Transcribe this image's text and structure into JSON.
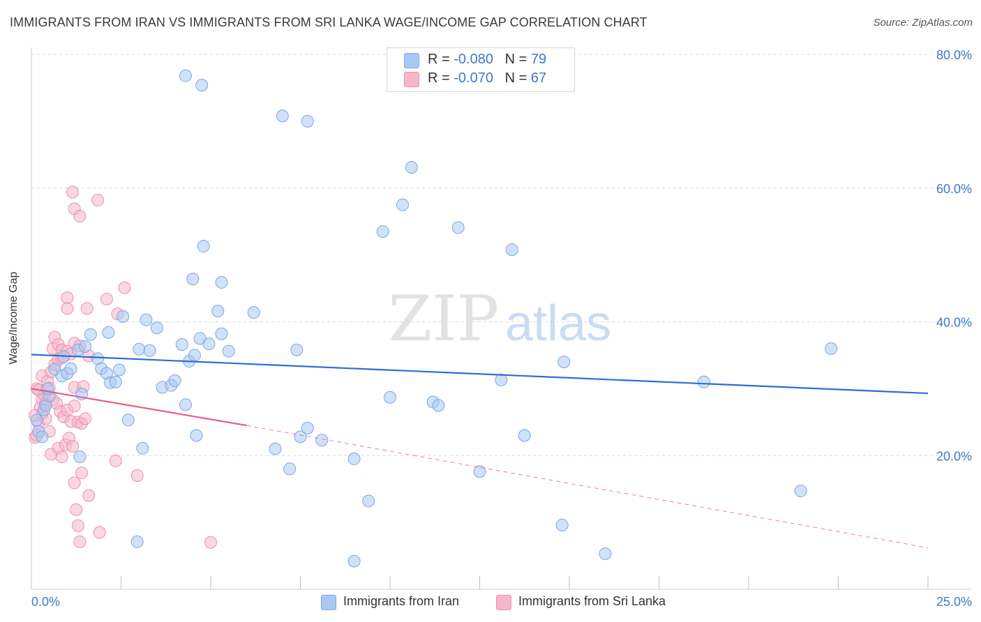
{
  "title": "IMMIGRANTS FROM IRAN VS IMMIGRANTS FROM SRI LANKA WAGE/INCOME GAP CORRELATION CHART",
  "source": "Source: ZipAtlas.com",
  "watermark": {
    "zip": "ZIP",
    "atlas": "atlas"
  },
  "colors": {
    "iran_fill": "#aac8f2",
    "iran_stroke": "#7aa7e6",
    "iran_line": "#2a6fcf",
    "srilanka_fill": "#f6b7cb",
    "srilanka_stroke": "#ec8fad",
    "srilanka_line": "#e4608c",
    "axis_text": "#3f78d0",
    "grid": "#dcdcdc"
  },
  "stats": [
    {
      "r_label": "R = ",
      "r_value": "-0.080",
      "n_label": "N = ",
      "n_value": "79"
    },
    {
      "r_label": "R = ",
      "r_value": "-0.070",
      "n_label": "N = ",
      "n_value": "67"
    }
  ],
  "legend": [
    "Immigrants from Iran",
    "Immigrants from Sri Lanka"
  ],
  "chart_data": {
    "type": "scatter",
    "title": "IMMIGRANTS FROM IRAN VS IMMIGRANTS FROM SRI LANKA WAGE/INCOME GAP CORRELATION CHART",
    "xlabel": "",
    "ylabel": "Wage/Income Gap",
    "xlim": [
      0,
      25
    ],
    "ylim": [
      0,
      80
    ],
    "x_tick_labels": [
      "0.0%",
      "25.0%"
    ],
    "y_ticks": [
      20,
      40,
      60,
      80
    ],
    "y_tick_labels": [
      "20.0%",
      "40.0%",
      "60.0%",
      "80.0%"
    ],
    "grid": true,
    "legend_position": "bottom",
    "series": [
      {
        "name": "Immigrants from Iran",
        "points": [
          [
            0.15,
            25.3
          ],
          [
            0.2,
            23.6
          ],
          [
            0.3,
            22.8
          ],
          [
            0.35,
            26.8
          ],
          [
            0.4,
            27.5
          ],
          [
            0.5,
            28.9
          ],
          [
            0.45,
            30.0
          ],
          [
            0.65,
            32.9
          ],
          [
            0.85,
            31.9
          ],
          [
            1.0,
            32.3
          ],
          [
            1.1,
            33.0
          ],
          [
            0.9,
            34.8
          ],
          [
            1.3,
            35.8
          ],
          [
            1.5,
            36.3
          ],
          [
            1.65,
            38.1
          ],
          [
            1.85,
            34.5
          ],
          [
            1.95,
            33.0
          ],
          [
            2.1,
            32.3
          ],
          [
            2.2,
            30.9
          ],
          [
            2.35,
            31.0
          ],
          [
            2.45,
            32.8
          ],
          [
            2.15,
            38.4
          ],
          [
            2.55,
            40.8
          ],
          [
            3.0,
            35.9
          ],
          [
            3.2,
            40.3
          ],
          [
            3.3,
            35.7
          ],
          [
            3.5,
            39.1
          ],
          [
            3.65,
            30.2
          ],
          [
            3.9,
            30.5
          ],
          [
            4.0,
            31.2
          ],
          [
            4.2,
            36.6
          ],
          [
            4.4,
            34.1
          ],
          [
            4.55,
            35.0
          ],
          [
            4.7,
            37.5
          ],
          [
            4.95,
            36.7
          ],
          [
            5.2,
            41.6
          ],
          [
            5.3,
            38.2
          ],
          [
            5.5,
            35.6
          ],
          [
            6.2,
            41.4
          ],
          [
            7.4,
            35.8
          ],
          [
            1.4,
            29.2
          ],
          [
            2.7,
            25.3
          ],
          [
            3.1,
            21.1
          ],
          [
            4.3,
            27.6
          ],
          [
            4.6,
            23.0
          ],
          [
            6.8,
            21.0
          ],
          [
            7.2,
            18.0
          ],
          [
            7.5,
            22.8
          ],
          [
            7.7,
            24.1
          ],
          [
            8.1,
            22.3
          ],
          [
            9.0,
            19.5
          ],
          [
            9.4,
            13.2
          ],
          [
            10.0,
            28.7
          ],
          [
            11.2,
            28.0
          ],
          [
            11.35,
            27.5
          ],
          [
            12.5,
            17.6
          ],
          [
            13.1,
            31.3
          ],
          [
            13.75,
            23.0
          ],
          [
            14.85,
            34.0
          ],
          [
            18.75,
            31.0
          ],
          [
            21.45,
            14.7
          ],
          [
            22.3,
            36.0
          ],
          [
            14.8,
            9.6
          ],
          [
            16.0,
            5.3
          ],
          [
            9.0,
            4.2
          ],
          [
            2.95,
            7.1
          ],
          [
            1.35,
            19.8
          ],
          [
            4.8,
            51.3
          ],
          [
            4.5,
            46.4
          ],
          [
            5.3,
            45.9
          ],
          [
            4.3,
            76.8
          ],
          [
            4.75,
            75.4
          ],
          [
            7.0,
            70.8
          ],
          [
            7.7,
            70.0
          ],
          [
            10.6,
            63.1
          ],
          [
            10.35,
            57.5
          ],
          [
            9.8,
            53.5
          ],
          [
            11.9,
            54.1
          ],
          [
            13.4,
            50.8
          ]
        ]
      },
      {
        "name": "Immigrants from Sri Lanka",
        "points": [
          [
            0.1,
            22.7
          ],
          [
            0.15,
            23.0
          ],
          [
            0.2,
            24.8
          ],
          [
            0.25,
            27.2
          ],
          [
            0.3,
            28.4
          ],
          [
            0.35,
            29.1
          ],
          [
            0.4,
            27.9
          ],
          [
            0.15,
            30.0
          ],
          [
            0.2,
            29.8
          ],
          [
            0.3,
            31.9
          ],
          [
            0.45,
            31.1
          ],
          [
            0.5,
            30.1
          ],
          [
            0.55,
            32.5
          ],
          [
            0.65,
            33.6
          ],
          [
            0.75,
            34.3
          ],
          [
            0.85,
            34.6
          ],
          [
            0.6,
            28.3
          ],
          [
            0.7,
            27.8
          ],
          [
            0.8,
            26.6
          ],
          [
            0.9,
            25.8
          ],
          [
            1.0,
            26.8
          ],
          [
            1.1,
            25.1
          ],
          [
            1.2,
            27.4
          ],
          [
            1.3,
            25.0
          ],
          [
            1.4,
            24.8
          ],
          [
            1.5,
            25.5
          ],
          [
            1.6,
            34.9
          ],
          [
            1.2,
            30.2
          ],
          [
            1.45,
            30.3
          ],
          [
            0.5,
            23.6
          ],
          [
            0.55,
            20.2
          ],
          [
            0.75,
            21.1
          ],
          [
            0.85,
            19.8
          ],
          [
            0.95,
            21.6
          ],
          [
            1.05,
            22.6
          ],
          [
            1.15,
            21.4
          ],
          [
            0.6,
            36.0
          ],
          [
            0.65,
            37.7
          ],
          [
            0.75,
            36.6
          ],
          [
            0.85,
            35.8
          ],
          [
            1.0,
            35.6
          ],
          [
            1.1,
            35.2
          ],
          [
            1.2,
            36.8
          ],
          [
            1.35,
            36.4
          ],
          [
            1.0,
            43.6
          ],
          [
            1.0,
            42.0
          ],
          [
            1.55,
            42.0
          ],
          [
            2.1,
            43.4
          ],
          [
            2.4,
            41.2
          ],
          [
            2.6,
            45.1
          ],
          [
            1.15,
            59.4
          ],
          [
            1.2,
            56.9
          ],
          [
            1.35,
            55.8
          ],
          [
            1.85,
            58.2
          ],
          [
            1.2,
            15.9
          ],
          [
            1.4,
            17.4
          ],
          [
            1.6,
            14.0
          ],
          [
            1.25,
            11.9
          ],
          [
            1.3,
            9.5
          ],
          [
            1.35,
            7.1
          ],
          [
            1.9,
            8.5
          ],
          [
            2.35,
            19.2
          ],
          [
            2.95,
            17.0
          ],
          [
            5.0,
            7.0
          ],
          [
            0.4,
            25.5
          ],
          [
            0.3,
            26.3
          ],
          [
            0.1,
            26.0
          ]
        ]
      }
    ],
    "trend_lines": [
      {
        "series": "Immigrants from Iran",
        "x": [
          0,
          25
        ],
        "y": [
          35.1,
          29.3
        ],
        "style": "solid"
      },
      {
        "series": "Immigrants from Sri Lanka",
        "x": [
          0,
          6.0
        ],
        "y": [
          30.0,
          24.5
        ],
        "style": "solid",
        "extension_x": [
          6.0,
          25
        ],
        "extension_y": [
          24.5,
          6.2
        ],
        "extension_style": "dashed"
      }
    ]
  }
}
